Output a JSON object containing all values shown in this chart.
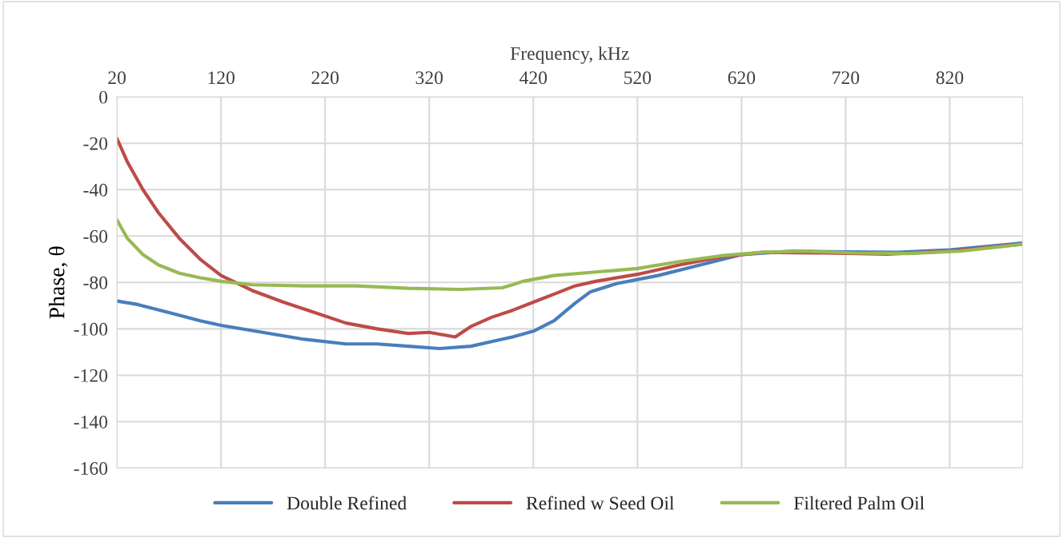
{
  "chart_data": {
    "type": "line",
    "xlabel": "Frequency, kHz",
    "ylabel": "Phase, θ",
    "xlim": [
      20,
      890
    ],
    "xticks": [
      20,
      120,
      220,
      320,
      420,
      520,
      620,
      720,
      820
    ],
    "ylim": [
      -160,
      0
    ],
    "yticks": [
      0,
      -20,
      -40,
      -60,
      -80,
      -100,
      -120,
      -140,
      -160
    ],
    "grid": true,
    "legend": "bottom",
    "marker": "none",
    "line_style": "solid",
    "series": [
      {
        "name": "Double Refined",
        "color": "#4a7ebb",
        "x": [
          20,
          40,
          70,
          100,
          120,
          160,
          200,
          240,
          270,
          300,
          330,
          360,
          380,
          400,
          420,
          440,
          460,
          475,
          500,
          540,
          580,
          620,
          670,
          720,
          770,
          820,
          890
        ],
        "values": [
          -88,
          -89.5,
          -93,
          -96.5,
          -98.5,
          -101.5,
          -104.5,
          -106.5,
          -106.5,
          -107.5,
          -108.5,
          -107.5,
          -105.5,
          -103.5,
          -101,
          -96.5,
          -89,
          -84,
          -80.5,
          -77,
          -72.5,
          -68,
          -66.5,
          -66.8,
          -67,
          -66,
          -63
        ]
      },
      {
        "name": "Refined w Seed Oil",
        "color": "#be4b48",
        "x": [
          20,
          30,
          45,
          60,
          80,
          100,
          120,
          150,
          180,
          210,
          240,
          270,
          300,
          320,
          345,
          360,
          380,
          400,
          420,
          440,
          460,
          480,
          520,
          560,
          600,
          640,
          700,
          760,
          820,
          890
        ],
        "values": [
          -18,
          -28,
          -40,
          -50,
          -61,
          -70,
          -77,
          -83.5,
          -88.5,
          -93,
          -97.5,
          -100,
          -102,
          -101.5,
          -103.5,
          -99,
          -95,
          -92,
          -88.5,
          -85,
          -81.5,
          -79.5,
          -76.5,
          -72.5,
          -69,
          -67,
          -67.3,
          -67.8,
          -66.5,
          -63.5
        ]
      },
      {
        "name": "Filtered Palm Oil",
        "color": "#98b954",
        "x": [
          20,
          30,
          45,
          60,
          80,
          100,
          120,
          150,
          200,
          250,
          300,
          350,
          390,
          400,
          410,
          440,
          480,
          520,
          560,
          600,
          640,
          680,
          730,
          780,
          830,
          890
        ],
        "values": [
          -53,
          -61,
          -68,
          -72.5,
          -76,
          -78,
          -79.5,
          -81,
          -81.5,
          -81.5,
          -82.5,
          -83,
          -82.3,
          -81,
          -79.5,
          -77,
          -75.5,
          -74,
          -71,
          -68.5,
          -67,
          -66.5,
          -67.3,
          -67.5,
          -66.5,
          -63.5
        ]
      }
    ]
  }
}
